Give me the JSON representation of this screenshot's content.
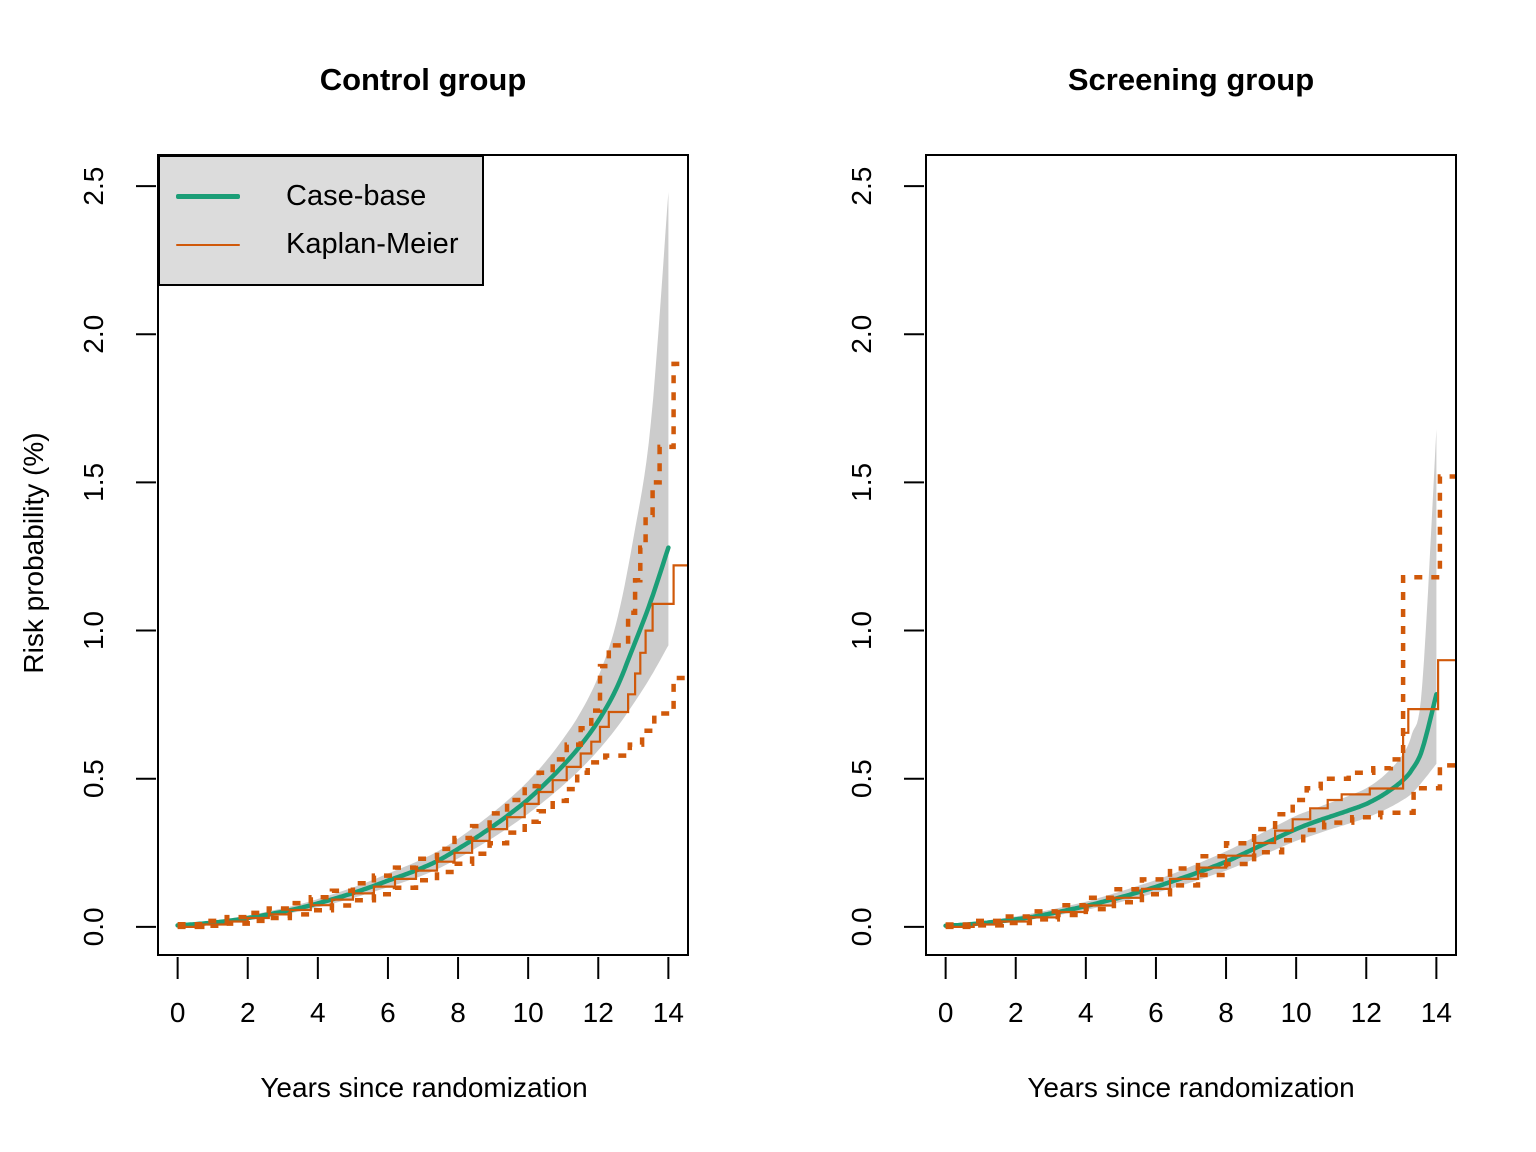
{
  "figure": {
    "background": "#ffffff",
    "ylabel": "Risk probability (%)",
    "xlabel": "Years since randomization"
  },
  "legend": {
    "background": "#dcdcdc",
    "border_color": "#000000",
    "items": [
      {
        "label": "Case-base",
        "color": "#1b9e77",
        "line_width": 5
      },
      {
        "label": "Kaplan-Meier",
        "color": "#d0590a",
        "line_width": 2
      }
    ]
  },
  "chart_data": [
    {
      "type": "line",
      "title": "Control group",
      "xlabel": "Years since randomization",
      "ylabel": "Risk probability (%)",
      "xlim": [
        -0.56,
        14.56
      ],
      "ylim": [
        -0.095,
        2.605
      ],
      "grid": false,
      "x_ticks": [
        0,
        2,
        4,
        6,
        8,
        10,
        12,
        14
      ],
      "x_tick_labels": [
        "0",
        "2",
        "4",
        "6",
        "8",
        "10",
        "12",
        "14"
      ],
      "y_ticks": [
        0,
        0.5,
        1.0,
        1.5,
        2.0,
        2.5
      ],
      "y_tick_labels": [
        "0.0",
        "0.5",
        "1.0",
        "1.5",
        "2.0",
        "2.5"
      ],
      "series": {
        "case_base_ci": {
          "name": "Case-base 95% CI band",
          "color": "#cccccc",
          "x": [
            0,
            0.5,
            1,
            1.5,
            2,
            2.5,
            3,
            3.5,
            4,
            4.5,
            5,
            5.5,
            6,
            6.5,
            7,
            7.5,
            8,
            8.5,
            9,
            9.5,
            10,
            10.5,
            11,
            11.5,
            12,
            12.5,
            13,
            13.5,
            14
          ],
          "lower": [
            0.003,
            0.006,
            0.01,
            0.016,
            0.023,
            0.031,
            0.041,
            0.053,
            0.066,
            0.081,
            0.097,
            0.115,
            0.134,
            0.153,
            0.174,
            0.2,
            0.231,
            0.265,
            0.301,
            0.34,
            0.382,
            0.428,
            0.478,
            0.533,
            0.596,
            0.668,
            0.752,
            0.845,
            0.95
          ],
          "upper": [
            0.008,
            0.013,
            0.019,
            0.027,
            0.038,
            0.05,
            0.063,
            0.077,
            0.094,
            0.113,
            0.133,
            0.155,
            0.18,
            0.204,
            0.23,
            0.26,
            0.298,
            0.34,
            0.386,
            0.436,
            0.492,
            0.558,
            0.635,
            0.725,
            0.845,
            1.02,
            1.31,
            1.7,
            2.48
          ]
        },
        "case_base": {
          "name": "Case-base",
          "color": "#1b9e77",
          "width": 4.5,
          "x": [
            0,
            0.5,
            1,
            1.5,
            2,
            2.5,
            3,
            3.5,
            4,
            4.5,
            5,
            5.5,
            6,
            6.5,
            7,
            7.5,
            8,
            8.5,
            9,
            9.5,
            10,
            10.5,
            11,
            11.5,
            12,
            12.5,
            13,
            13.5,
            14
          ],
          "y": [
            0.005,
            0.009,
            0.014,
            0.021,
            0.03,
            0.04,
            0.051,
            0.064,
            0.079,
            0.096,
            0.114,
            0.134,
            0.156,
            0.177,
            0.2,
            0.228,
            0.263,
            0.3,
            0.34,
            0.383,
            0.43,
            0.485,
            0.545,
            0.613,
            0.695,
            0.8,
            0.945,
            1.1,
            1.28
          ]
        },
        "kaplan_meier": {
          "name": "Kaplan-Meier",
          "color": "#d0590a",
          "width": 2.2,
          "style": "step",
          "end_x": 14.56,
          "steps": [
            [
              0,
              0
            ],
            [
              0.7,
              0.008
            ],
            [
              1.4,
              0.018
            ],
            [
              2,
              0.03
            ],
            [
              2.6,
              0.042
            ],
            [
              3.2,
              0.057
            ],
            [
              3.8,
              0.073
            ],
            [
              4.4,
              0.092
            ],
            [
              5,
              0.113
            ],
            [
              5.6,
              0.136
            ],
            [
              6.2,
              0.162
            ],
            [
              6.8,
              0.19
            ],
            [
              7.4,
              0.22
            ],
            [
              7.9,
              0.25
            ],
            [
              8.4,
              0.29
            ],
            [
              8.9,
              0.33
            ],
            [
              9.4,
              0.37
            ],
            [
              9.9,
              0.415
            ],
            [
              10.3,
              0.455
            ],
            [
              10.7,
              0.495
            ],
            [
              11.1,
              0.54
            ],
            [
              11.5,
              0.585
            ],
            [
              11.8,
              0.625
            ],
            [
              12.05,
              0.675
            ],
            [
              12.3,
              0.725
            ],
            [
              12.85,
              0.785
            ],
            [
              13.05,
              0.855
            ],
            [
              13.2,
              0.925
            ],
            [
              13.35,
              1.0
            ],
            [
              13.55,
              1.09
            ],
            [
              14.15,
              1.22
            ]
          ]
        },
        "km_ci_upper": {
          "name": "Kaplan-Meier upper 95% CI",
          "color": "#d0590a",
          "width": 4.5,
          "style": "step",
          "dashed": true,
          "end_x": 14.56,
          "steps": [
            [
              0,
              0.009
            ],
            [
              0.7,
              0.02
            ],
            [
              1.4,
              0.033
            ],
            [
              2,
              0.047
            ],
            [
              2.6,
              0.062
            ],
            [
              3.2,
              0.08
            ],
            [
              3.8,
              0.1
            ],
            [
              4.4,
              0.122
            ],
            [
              5,
              0.147
            ],
            [
              5.6,
              0.173
            ],
            [
              6.2,
              0.2
            ],
            [
              6.8,
              0.23
            ],
            [
              7.4,
              0.263
            ],
            [
              7.9,
              0.3
            ],
            [
              8.4,
              0.34
            ],
            [
              8.9,
              0.383
            ],
            [
              9.4,
              0.428
            ],
            [
              9.9,
              0.475
            ],
            [
              10.3,
              0.52
            ],
            [
              10.7,
              0.565
            ],
            [
              11.1,
              0.615
            ],
            [
              11.5,
              0.67
            ],
            [
              11.8,
              0.73
            ],
            [
              12.05,
              0.88
            ],
            [
              12.3,
              0.95
            ],
            [
              12.85,
              1.06
            ],
            [
              13.05,
              1.17
            ],
            [
              13.2,
              1.28
            ],
            [
              13.35,
              1.39
            ],
            [
              13.55,
              1.5
            ],
            [
              13.75,
              1.62
            ],
            [
              14.15,
              1.9
            ]
          ]
        },
        "km_ci_lower": {
          "name": "Kaplan-Meier lower 95% CI",
          "color": "#d0590a",
          "width": 4.5,
          "style": "step",
          "dashed": true,
          "end_x": 14.56,
          "steps": [
            [
              0,
              0
            ],
            [
              0.7,
              0.004
            ],
            [
              1.4,
              0.011
            ],
            [
              2,
              0.02
            ],
            [
              2.6,
              0.03
            ],
            [
              3.2,
              0.042
            ],
            [
              3.8,
              0.056
            ],
            [
              4.4,
              0.072
            ],
            [
              5,
              0.09
            ],
            [
              5.6,
              0.11
            ],
            [
              6.2,
              0.132
            ],
            [
              6.8,
              0.157
            ],
            [
              7.4,
              0.185
            ],
            [
              7.9,
              0.213
            ],
            [
              8.4,
              0.247
            ],
            [
              8.9,
              0.282
            ],
            [
              9.4,
              0.318
            ],
            [
              9.9,
              0.355
            ],
            [
              10.3,
              0.39
            ],
            [
              10.7,
              0.425
            ],
            [
              11.1,
              0.465
            ],
            [
              11.4,
              0.52
            ],
            [
              11.7,
              0.555
            ],
            [
              12.2,
              0.578
            ],
            [
              12.9,
              0.615
            ],
            [
              13.25,
              0.662
            ],
            [
              13.6,
              0.72
            ],
            [
              14.15,
              0.84
            ]
          ]
        }
      }
    },
    {
      "type": "line",
      "title": "Screening group",
      "xlabel": "Years since randomization",
      "ylabel": "Risk probability (%)",
      "xlim": [
        -0.56,
        14.56
      ],
      "ylim": [
        -0.095,
        2.605
      ],
      "grid": false,
      "x_ticks": [
        0,
        2,
        4,
        6,
        8,
        10,
        12,
        14
      ],
      "x_tick_labels": [
        "0",
        "2",
        "4",
        "6",
        "8",
        "10",
        "12",
        "14"
      ],
      "y_ticks": [
        0,
        0.5,
        1.0,
        1.5,
        2.0,
        2.5
      ],
      "y_tick_labels": [
        "0.0",
        "0.5",
        "1.0",
        "1.5",
        "2.0",
        "2.5"
      ],
      "series": {
        "case_base_ci": {
          "name": "Case-base 95% CI band",
          "color": "#cccccc",
          "x": [
            0,
            0.5,
            1,
            1.5,
            2,
            2.5,
            3,
            3.5,
            4,
            4.5,
            5,
            5.5,
            6,
            6.5,
            7,
            7.5,
            8,
            8.5,
            9,
            9.5,
            10,
            10.5,
            11,
            11.5,
            12,
            12.5,
            13,
            13.3,
            13.6,
            14
          ],
          "lower": [
            0.002,
            0.004,
            0.008,
            0.013,
            0.018,
            0.026,
            0.035,
            0.046,
            0.057,
            0.07,
            0.084,
            0.099,
            0.115,
            0.132,
            0.15,
            0.17,
            0.19,
            0.214,
            0.24,
            0.265,
            0.29,
            0.31,
            0.33,
            0.348,
            0.368,
            0.393,
            0.425,
            0.45,
            0.49,
            0.55
          ],
          "upper": [
            0.007,
            0.012,
            0.019,
            0.027,
            0.035,
            0.046,
            0.058,
            0.071,
            0.085,
            0.102,
            0.12,
            0.139,
            0.158,
            0.18,
            0.204,
            0.229,
            0.255,
            0.284,
            0.315,
            0.345,
            0.375,
            0.398,
            0.42,
            0.442,
            0.468,
            0.51,
            0.575,
            0.65,
            0.82,
            1.68
          ]
        },
        "case_base": {
          "name": "Case-base",
          "color": "#1b9e77",
          "width": 4.5,
          "x": [
            0,
            0.5,
            1,
            1.5,
            2,
            2.5,
            3,
            3.5,
            4,
            4.5,
            5,
            5.5,
            6,
            6.5,
            7,
            7.5,
            8,
            8.5,
            9,
            9.5,
            10,
            10.5,
            11,
            11.5,
            12,
            12.5,
            13,
            13.3,
            13.6,
            14
          ],
          "y": [
            0.004,
            0.007,
            0.012,
            0.018,
            0.025,
            0.034,
            0.045,
            0.057,
            0.07,
            0.085,
            0.1,
            0.117,
            0.135,
            0.155,
            0.175,
            0.197,
            0.22,
            0.247,
            0.275,
            0.303,
            0.33,
            0.353,
            0.373,
            0.393,
            0.415,
            0.447,
            0.49,
            0.53,
            0.6,
            0.785
          ]
        },
        "kaplan_meier": {
          "name": "Kaplan-Meier",
          "color": "#d0590a",
          "width": 2.2,
          "style": "step",
          "end_x": 14.56,
          "steps": [
            [
              0,
              0
            ],
            [
              0.8,
              0.008
            ],
            [
              1.6,
              0.018
            ],
            [
              2.4,
              0.032
            ],
            [
              3.2,
              0.05
            ],
            [
              4,
              0.072
            ],
            [
              4.8,
              0.098
            ],
            [
              5.6,
              0.128
            ],
            [
              6.4,
              0.162
            ],
            [
              7.2,
              0.2
            ],
            [
              8,
              0.24
            ],
            [
              8.8,
              0.283
            ],
            [
              9.4,
              0.325
            ],
            [
              9.9,
              0.363
            ],
            [
              10.4,
              0.4
            ],
            [
              10.9,
              0.428
            ],
            [
              11.3,
              0.447
            ],
            [
              12.1,
              0.467
            ],
            [
              13.05,
              0.655
            ],
            [
              13.2,
              0.735
            ],
            [
              14.05,
              0.9
            ]
          ]
        },
        "km_ci_upper": {
          "name": "Kaplan-Meier upper 95% CI",
          "color": "#d0590a",
          "width": 4.5,
          "style": "step",
          "dashed": true,
          "end_x": 14.56,
          "steps": [
            [
              0,
              0.008
            ],
            [
              0.8,
              0.02
            ],
            [
              1.6,
              0.035
            ],
            [
              2.4,
              0.052
            ],
            [
              3.2,
              0.073
            ],
            [
              4,
              0.098
            ],
            [
              4.8,
              0.127
            ],
            [
              5.6,
              0.16
            ],
            [
              6.4,
              0.197
            ],
            [
              7.2,
              0.238
            ],
            [
              8,
              0.282
            ],
            [
              8.8,
              0.33
            ],
            [
              9.4,
              0.38
            ],
            [
              9.9,
              0.428
            ],
            [
              10.3,
              0.468
            ],
            [
              10.7,
              0.5
            ],
            [
              11.5,
              0.52
            ],
            [
              12.2,
              0.535
            ],
            [
              12.7,
              0.565
            ],
            [
              13.05,
              1.18
            ],
            [
              14.1,
              1.52
            ]
          ]
        },
        "km_ci_lower": {
          "name": "Kaplan-Meier lower 95% CI",
          "color": "#d0590a",
          "width": 4.5,
          "style": "step",
          "dashed": true,
          "end_x": 14.56,
          "steps": [
            [
              0,
              0
            ],
            [
              0.8,
              0.005
            ],
            [
              1.6,
              0.013
            ],
            [
              2.4,
              0.025
            ],
            [
              3.2,
              0.04
            ],
            [
              4,
              0.06
            ],
            [
              4.8,
              0.083
            ],
            [
              5.6,
              0.11
            ],
            [
              6.4,
              0.14
            ],
            [
              7.2,
              0.175
            ],
            [
              8,
              0.212
            ],
            [
              8.8,
              0.252
            ],
            [
              9.6,
              0.292
            ],
            [
              10.2,
              0.327
            ],
            [
              10.8,
              0.352
            ],
            [
              11.6,
              0.37
            ],
            [
              12.4,
              0.385
            ],
            [
              13.35,
              0.468
            ],
            [
              14.1,
              0.545
            ]
          ]
        }
      }
    }
  ]
}
